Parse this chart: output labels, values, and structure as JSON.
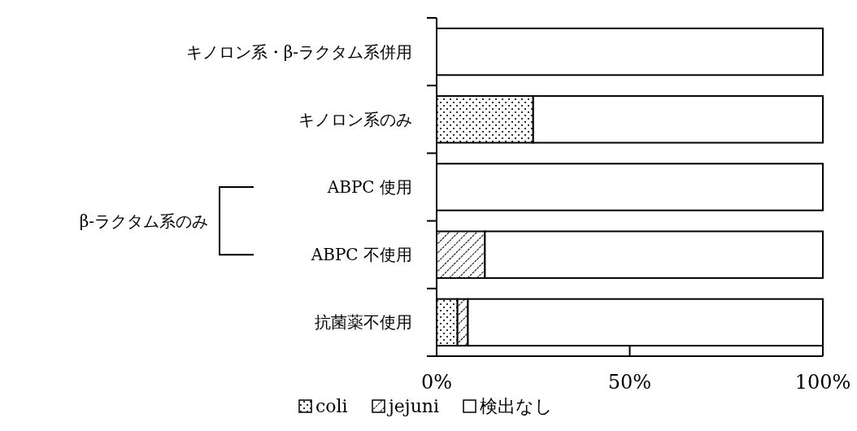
{
  "chart_data": {
    "type": "bar",
    "orientation": "horizontal",
    "stacked": true,
    "categories": [
      "キノロン系・β-ラクタム系併用",
      "キノロン系のみ",
      "ABPC 使用",
      "ABPC 不使用",
      "抗菌薬不使用"
    ],
    "series": [
      {
        "name": "coli",
        "color": "#000000",
        "values": [
          0,
          25,
          0,
          0,
          5.4
        ]
      },
      {
        "name": "jejuni",
        "color": "#000000",
        "values": [
          0,
          0,
          0,
          12.5,
          2.7
        ]
      },
      {
        "name": "検出なし",
        "color": "#ffffff",
        "values": [
          100,
          75,
          100,
          87.5,
          91.9
        ]
      }
    ],
    "xlim": [
      0,
      100
    ],
    "xticks": [
      {
        "value": 0,
        "label": "0%"
      },
      {
        "value": 50,
        "label": "50%"
      },
      {
        "value": 100,
        "label": "100%"
      }
    ],
    "legend": "bottom",
    "annotations": [
      "β-ラクタム系のみ"
    ]
  }
}
